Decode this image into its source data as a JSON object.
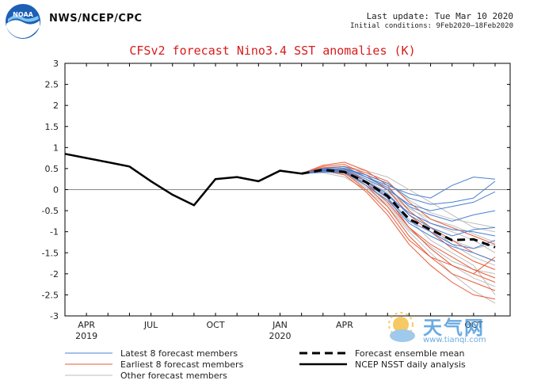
{
  "header": {
    "org": "NWS/NCEP/CPC",
    "last_update": "Last update: Tue Mar 10 2020",
    "initial_conditions": "Initial conditions: 9Feb2020–18Feb2020",
    "logo_label": "NOAA"
  },
  "watermark": {
    "title": "天气网",
    "url": "www.tianqi.com"
  },
  "colors": {
    "title": "#d81b1b",
    "latest": "#4a7fcf",
    "earliest": "#e85c3a",
    "other": "#bdbdbd",
    "main": "#000000"
  },
  "chart_data": {
    "type": "line",
    "title": "CFSv2 forecast Nino3.4 SST anomalies (K)",
    "ylim": [
      -3,
      3
    ],
    "y_ticks": [
      3,
      2.5,
      2,
      1.5,
      1,
      0.5,
      0,
      -0.5,
      -1,
      -1.5,
      -2,
      -2.5,
      -3
    ],
    "x_ticks": [
      {
        "month": 1,
        "label": "APR",
        "year": "2019"
      },
      {
        "month": 4,
        "label": "JUL",
        "year": ""
      },
      {
        "month": 7,
        "label": "OCT",
        "year": ""
      },
      {
        "month": 10,
        "label": "JAN",
        "year": "2020"
      },
      {
        "month": 13,
        "label": "APR",
        "year": ""
      },
      {
        "month": 19,
        "label": "OCT",
        "year": ""
      }
    ],
    "xlim_months": [
      0,
      20.7
    ],
    "legend": [
      {
        "key": "latest",
        "label": "Latest 8 forecast members"
      },
      {
        "key": "earliest",
        "label": "Earliest 8 forecast members"
      },
      {
        "key": "other",
        "label": "Other forecast members"
      },
      {
        "key": "mean",
        "label": "Forecast ensemble mean"
      },
      {
        "key": "analysis",
        "label": "NCEP NSST daily analysis"
      }
    ],
    "analysis": {
      "months": [
        0,
        1,
        2,
        3,
        4,
        5,
        6,
        7,
        8,
        9,
        10,
        11
      ],
      "values": [
        0.85,
        0.75,
        0.65,
        0.55,
        0.2,
        -0.12,
        -0.37,
        0.25,
        0.3,
        0.2,
        0.45,
        0.38
      ]
    },
    "ensemble_mean": {
      "months": [
        11,
        12,
        13,
        14,
        15,
        16,
        17,
        18,
        19,
        20
      ],
      "values": [
        0.38,
        0.47,
        0.42,
        0.18,
        -0.15,
        -0.7,
        -0.95,
        -1.2,
        -1.18,
        -1.37
      ]
    },
    "members_latest": [
      [
        0.38,
        0.5,
        0.55,
        0.3,
        0.05,
        -0.4,
        -0.6,
        -0.75,
        -0.6,
        -0.5
      ],
      [
        0.38,
        0.45,
        0.5,
        0.35,
        0.15,
        -0.2,
        -0.35,
        -0.3,
        -0.2,
        0.2
      ],
      [
        0.38,
        0.48,
        0.45,
        0.2,
        -0.1,
        -0.6,
        -0.9,
        -1.1,
        -0.95,
        -0.9
      ],
      [
        0.38,
        0.42,
        0.4,
        0.15,
        -0.2,
        -0.75,
        -1.0,
        -1.3,
        -1.4,
        -1.2
      ],
      [
        0.38,
        0.5,
        0.48,
        0.25,
        0.0,
        -0.35,
        -0.5,
        -0.4,
        -0.3,
        -0.05
      ],
      [
        0.38,
        0.44,
        0.42,
        0.1,
        -0.25,
        -0.8,
        -1.1,
        -1.35,
        -1.5,
        -1.7
      ],
      [
        0.38,
        0.46,
        0.5,
        0.3,
        0.1,
        -0.1,
        -0.2,
        0.1,
        0.3,
        0.25
      ],
      [
        0.38,
        0.47,
        0.44,
        0.2,
        -0.15,
        -0.55,
        -0.8,
        -0.95,
        -1.0,
        -1.1
      ]
    ],
    "members_earliest": [
      [
        0.38,
        0.5,
        0.45,
        0.1,
        -0.4,
        -1.1,
        -1.6,
        -2.0,
        -2.2,
        -2.4
      ],
      [
        0.38,
        0.55,
        0.6,
        0.35,
        0.0,
        -0.6,
        -1.0,
        -1.4,
        -1.7,
        -1.9
      ],
      [
        0.38,
        0.45,
        0.35,
        -0.05,
        -0.6,
        -1.3,
        -1.8,
        -2.2,
        -2.5,
        -2.6
      ],
      [
        0.38,
        0.48,
        0.5,
        0.2,
        -0.2,
        -0.9,
        -1.4,
        -1.8,
        -2.0,
        -2.2
      ],
      [
        0.38,
        0.52,
        0.55,
        0.4,
        0.2,
        -0.3,
        -0.7,
        -0.9,
        -1.1,
        -1.3
      ],
      [
        0.38,
        0.5,
        0.4,
        0.0,
        -0.5,
        -1.2,
        -1.6,
        -1.8,
        -2.0,
        -1.6
      ],
      [
        0.38,
        0.46,
        0.42,
        0.15,
        -0.3,
        -0.9,
        -1.3,
        -1.6,
        -1.9,
        -2.1
      ],
      [
        0.38,
        0.58,
        0.65,
        0.45,
        0.1,
        -0.5,
        -0.9,
        -1.2,
        -1.5,
        -1.7
      ]
    ],
    "members_other": [
      [
        0.38,
        0.45,
        0.5,
        0.3,
        0.0,
        -0.5,
        -0.9,
        -1.3,
        -1.6,
        -1.8
      ],
      [
        0.38,
        0.42,
        0.38,
        0.1,
        -0.3,
        -0.9,
        -1.4,
        -1.8,
        -2.1,
        -2.3
      ],
      [
        0.38,
        0.5,
        0.55,
        0.45,
        0.3,
        0.0,
        -0.3,
        -0.6,
        -0.9,
        -1.0
      ],
      [
        0.38,
        0.4,
        0.3,
        0.0,
        -0.4,
        -1.0,
        -1.5,
        -2.0,
        -2.4,
        -2.7
      ],
      [
        0.38,
        0.48,
        0.46,
        0.25,
        -0.1,
        -0.6,
        -1.0,
        -1.2,
        -1.4,
        -1.3
      ],
      [
        0.38,
        0.44,
        0.5,
        0.35,
        0.15,
        -0.25,
        -0.55,
        -0.7,
        -0.8,
        -0.9
      ],
      [
        0.38,
        0.46,
        0.4,
        0.05,
        -0.35,
        -0.95,
        -1.35,
        -1.7,
        -1.9,
        -2.0
      ],
      [
        0.38,
        0.5,
        0.52,
        0.3,
        0.05,
        -0.4,
        -0.8,
        -1.0,
        -1.2,
        -1.5
      ],
      [
        0.38,
        0.43,
        0.42,
        0.2,
        -0.2,
        -0.7,
        -1.2,
        -1.5,
        -1.8,
        -2.5
      ],
      [
        0.38,
        0.47,
        0.45,
        0.2,
        -0.05,
        -0.45,
        -0.7,
        -0.85,
        -1.05,
        -1.25
      ]
    ]
  }
}
